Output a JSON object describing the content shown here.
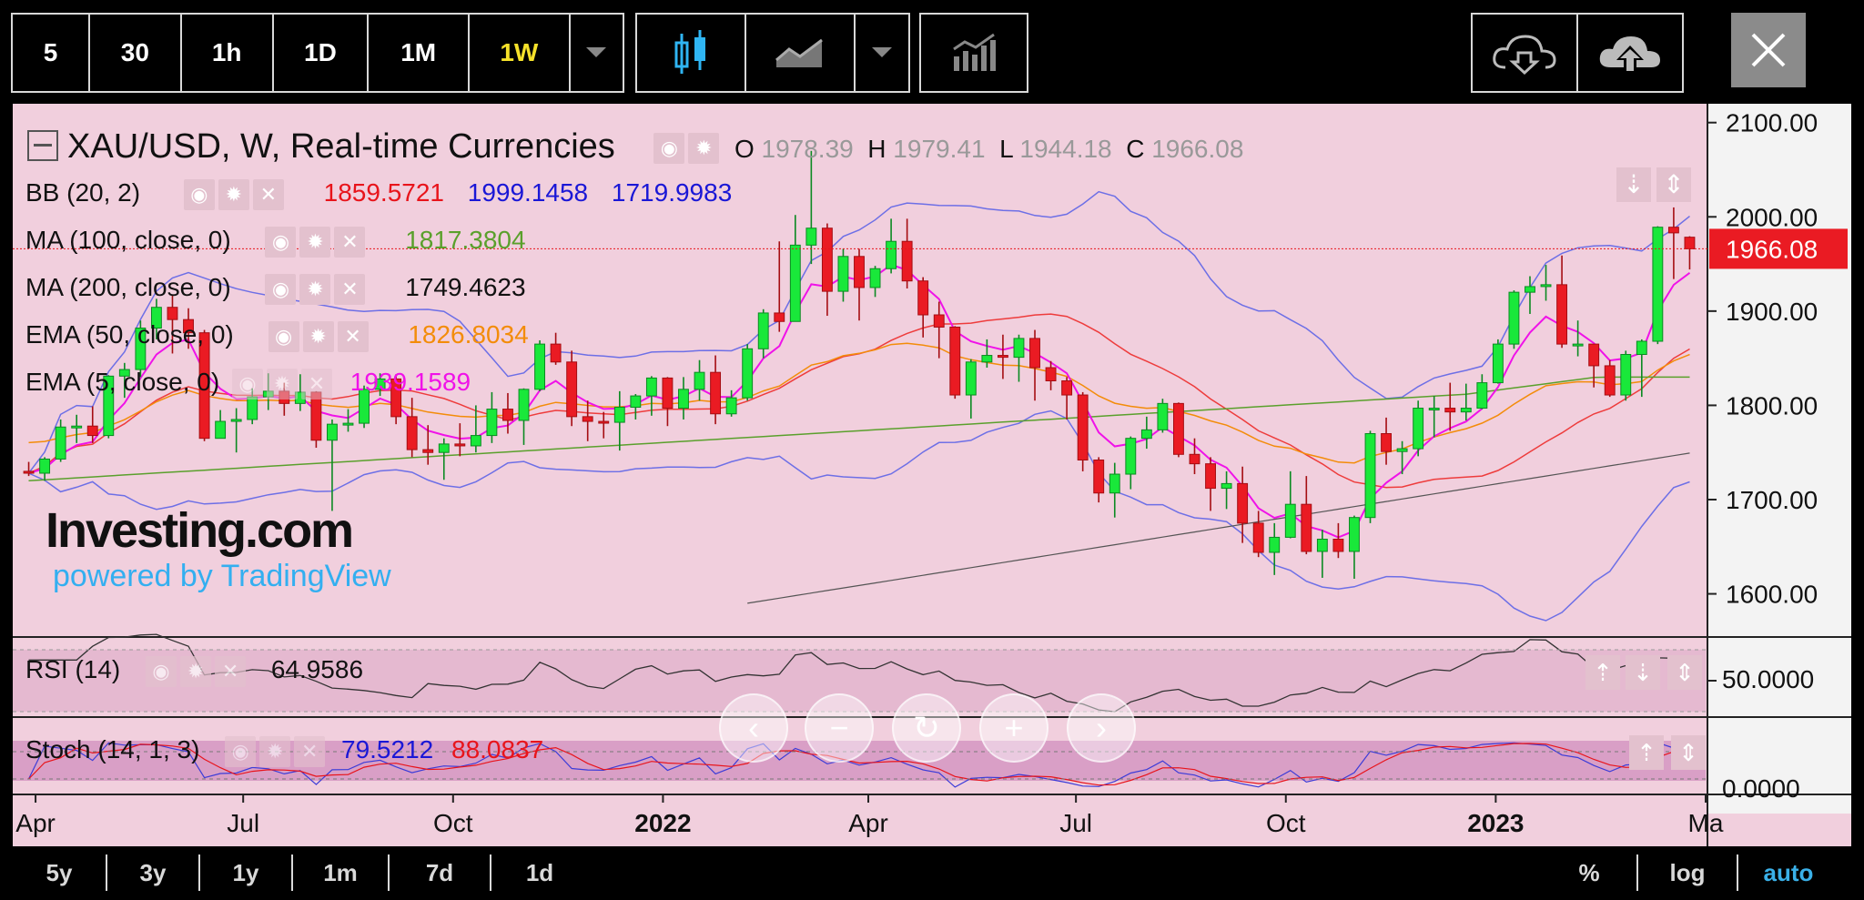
{
  "toolbar": {
    "intervals": [
      "5",
      "30",
      "1h",
      "1D",
      "1M",
      "1W"
    ],
    "active_interval": "1W"
  },
  "legend": {
    "symbol": "XAU/USD, W, Real-time Currencies",
    "ohlc": {
      "o_label": "O",
      "o": "1978.39",
      "h_label": "H",
      "h": "1979.41",
      "l_label": "L",
      "l": "1944.18",
      "c_label": "C",
      "c": "1966.08"
    },
    "indicators": [
      {
        "name": "BB (20, 2)",
        "values": [
          "1859.5721",
          "1999.1458",
          "1719.9983"
        ],
        "colors": [
          "#e8141b",
          "#1a17d6",
          "#1a17d6"
        ]
      },
      {
        "name": "MA (100, close, 0)",
        "values": [
          "1817.3804"
        ],
        "colors": [
          "#5aa02c"
        ]
      },
      {
        "name": "MA (200, close, 0)",
        "values": [
          "1749.4623"
        ],
        "colors": [
          "#111111"
        ]
      },
      {
        "name": "EMA (50, close, 0)",
        "values": [
          "1826.8034"
        ],
        "colors": [
          "#f38c09"
        ]
      },
      {
        "name": "EMA (5, close, 0)",
        "values": [
          "1939.1589"
        ],
        "colors": [
          "#f012e8"
        ]
      }
    ],
    "rsi": {
      "name": "RSI (14)",
      "value": "64.9586"
    },
    "stoch": {
      "name": "Stoch (14, 1, 3)",
      "k": "79.5212",
      "d": "88.0837"
    }
  },
  "brand": {
    "logo": "Investing.com",
    "powered": "powered by TradingView"
  },
  "price_axis": {
    "ticks": [
      "2100.00",
      "2000.00",
      "1900.00",
      "1800.00",
      "1700.00",
      "1600.00"
    ],
    "current": "1966.08"
  },
  "rsi_axis": {
    "tick": "50.0000"
  },
  "stoch_axis": {
    "tick": "0.0000"
  },
  "time_axis": [
    "Apr",
    "Jul",
    "Oct",
    "2022",
    "Apr",
    "Jul",
    "Oct",
    "2023",
    "Ma"
  ],
  "ranges": [
    "5y",
    "3y",
    "1y",
    "1m",
    "7d",
    "1d"
  ],
  "options": {
    "percent": "%",
    "log": "log",
    "auto": "auto"
  },
  "colors": {
    "up": "#19e83a",
    "down": "#ea1b23",
    "background": "#f1cfdd",
    "accent_auto": "#3ab0e8",
    "price_label": "#ea1b23"
  },
  "chart_data": {
    "type": "candlestick",
    "title": "XAU/USD, W, Real-time Currencies",
    "interval": "1W",
    "ylim": [
      1560,
      2120
    ],
    "x_range": [
      "2021-03-22",
      "2023-04-03"
    ],
    "series": [
      {
        "name": "XAU/USD",
        "points": [
          [
            "2021-03-29",
            1730,
            1740,
            1725,
            1728
          ],
          [
            "2021-04-05",
            1728,
            1745,
            1720,
            1743
          ],
          [
            "2021-04-12",
            1743,
            1785,
            1740,
            1777
          ],
          [
            "2021-04-19",
            1777,
            1790,
            1760,
            1778
          ],
          [
            "2021-04-26",
            1778,
            1799,
            1760,
            1768
          ],
          [
            "2021-05-03",
            1768,
            1832,
            1765,
            1831
          ],
          [
            "2021-05-10",
            1831,
            1845,
            1808,
            1838
          ],
          [
            "2021-05-17",
            1838,
            1890,
            1830,
            1882
          ],
          [
            "2021-05-24",
            1882,
            1913,
            1870,
            1904
          ],
          [
            "2021-05-31",
            1904,
            1917,
            1855,
            1891
          ],
          [
            "2021-06-07",
            1891,
            1903,
            1860,
            1877
          ],
          [
            "2021-06-14",
            1877,
            1880,
            1762,
            1765
          ],
          [
            "2021-06-21",
            1765,
            1795,
            1770,
            1783
          ],
          [
            "2021-06-28",
            1783,
            1797,
            1750,
            1785
          ],
          [
            "2021-07-05",
            1785,
            1818,
            1780,
            1809
          ],
          [
            "2021-07-12",
            1809,
            1834,
            1795,
            1815
          ],
          [
            "2021-07-19",
            1815,
            1824,
            1789,
            1802
          ],
          [
            "2021-07-26",
            1802,
            1833,
            1794,
            1814
          ],
          [
            "2021-08-02",
            1814,
            1815,
            1755,
            1763
          ],
          [
            "2021-08-09",
            1763,
            1785,
            1688,
            1780
          ],
          [
            "2021-08-16",
            1780,
            1796,
            1772,
            1781
          ],
          [
            "2021-08-23",
            1781,
            1821,
            1776,
            1817
          ],
          [
            "2021-08-30",
            1817,
            1834,
            1810,
            1828
          ],
          [
            "2021-09-06",
            1828,
            1833,
            1780,
            1788
          ],
          [
            "2021-09-13",
            1788,
            1808,
            1745,
            1753
          ],
          [
            "2021-09-20",
            1753,
            1779,
            1737,
            1750
          ],
          [
            "2021-09-27",
            1750,
            1765,
            1721,
            1759
          ],
          [
            "2021-10-04",
            1759,
            1781,
            1746,
            1757
          ],
          [
            "2021-10-11",
            1757,
            1800,
            1750,
            1768
          ],
          [
            "2021-10-18",
            1768,
            1814,
            1760,
            1796
          ],
          [
            "2021-10-25",
            1796,
            1813,
            1770,
            1784
          ],
          [
            "2021-11-01",
            1784,
            1818,
            1758,
            1817
          ],
          [
            "2021-11-08",
            1817,
            1869,
            1815,
            1865
          ],
          [
            "2021-11-15",
            1865,
            1877,
            1843,
            1846
          ],
          [
            "2021-11-22",
            1846,
            1858,
            1778,
            1788
          ],
          [
            "2021-11-29",
            1788,
            1805,
            1762,
            1783
          ],
          [
            "2021-12-06",
            1783,
            1793,
            1765,
            1782
          ],
          [
            "2021-12-13",
            1782,
            1815,
            1752,
            1798
          ],
          [
            "2021-12-20",
            1798,
            1812,
            1785,
            1810
          ],
          [
            "2021-12-27",
            1810,
            1831,
            1789,
            1829
          ],
          [
            "2022-01-03",
            1829,
            1830,
            1778,
            1797
          ],
          [
            "2022-01-10",
            1797,
            1830,
            1785,
            1817
          ],
          [
            "2022-01-17",
            1817,
            1848,
            1805,
            1835
          ],
          [
            "2022-01-24",
            1835,
            1853,
            1780,
            1791
          ],
          [
            "2022-01-31",
            1791,
            1816,
            1788,
            1808
          ],
          [
            "2022-02-07",
            1808,
            1865,
            1805,
            1860
          ],
          [
            "2022-02-14",
            1860,
            1902,
            1850,
            1898
          ],
          [
            "2022-02-21",
            1898,
            1974,
            1878,
            1889
          ],
          [
            "2022-02-28",
            1889,
            2002,
            1889,
            1970
          ],
          [
            "2022-03-07",
            1970,
            2070,
            1950,
            1988
          ],
          [
            "2022-03-14",
            1988,
            1993,
            1895,
            1921
          ],
          [
            "2022-03-21",
            1921,
            1966,
            1910,
            1958
          ],
          [
            "2022-03-28",
            1958,
            1966,
            1890,
            1925
          ],
          [
            "2022-04-04",
            1925,
            1948,
            1915,
            1945
          ],
          [
            "2022-04-11",
            1945,
            1998,
            1940,
            1974
          ],
          [
            "2022-04-18",
            1974,
            1998,
            1924,
            1932
          ],
          [
            "2022-04-25",
            1932,
            1936,
            1872,
            1896
          ],
          [
            "2022-05-02",
            1896,
            1910,
            1850,
            1883
          ],
          [
            "2022-05-09",
            1883,
            1884,
            1807,
            1811
          ],
          [
            "2022-05-16",
            1811,
            1849,
            1786,
            1846
          ],
          [
            "2022-05-23",
            1846,
            1870,
            1840,
            1853
          ],
          [
            "2022-05-30",
            1853,
            1875,
            1828,
            1851
          ],
          [
            "2022-06-06",
            1851,
            1875,
            1825,
            1871
          ],
          [
            "2022-06-13",
            1871,
            1880,
            1805,
            1840
          ],
          [
            "2022-06-20",
            1840,
            1847,
            1816,
            1826
          ],
          [
            "2022-06-27",
            1826,
            1830,
            1785,
            1811
          ],
          [
            "2022-07-04",
            1811,
            1814,
            1730,
            1742
          ],
          [
            "2022-07-11",
            1742,
            1745,
            1697,
            1707
          ],
          [
            "2022-07-18",
            1707,
            1739,
            1681,
            1727
          ],
          [
            "2022-07-25",
            1727,
            1767,
            1711,
            1765
          ],
          [
            "2022-08-01",
            1765,
            1788,
            1754,
            1774
          ],
          [
            "2022-08-08",
            1774,
            1807,
            1771,
            1802
          ],
          [
            "2022-08-15",
            1802,
            1803,
            1745,
            1748
          ],
          [
            "2022-08-22",
            1748,
            1765,
            1727,
            1738
          ],
          [
            "2022-08-29",
            1738,
            1745,
            1688,
            1712
          ],
          [
            "2022-09-05",
            1712,
            1730,
            1690,
            1717
          ],
          [
            "2022-09-12",
            1717,
            1735,
            1654,
            1675
          ],
          [
            "2022-09-19",
            1675,
            1688,
            1639,
            1644
          ],
          [
            "2022-09-26",
            1644,
            1675,
            1620,
            1660
          ],
          [
            "2022-10-03",
            1660,
            1730,
            1659,
            1695
          ],
          [
            "2022-10-10",
            1695,
            1725,
            1642,
            1645
          ],
          [
            "2022-10-17",
            1645,
            1668,
            1617,
            1658
          ],
          [
            "2022-10-24",
            1658,
            1675,
            1638,
            1645
          ],
          [
            "2022-10-31",
            1645,
            1683,
            1616,
            1681
          ],
          [
            "2022-11-07",
            1681,
            1773,
            1675,
            1770
          ],
          [
            "2022-11-14",
            1770,
            1787,
            1737,
            1751
          ],
          [
            "2022-11-21",
            1751,
            1762,
            1727,
            1754
          ],
          [
            "2022-11-28",
            1754,
            1805,
            1746,
            1797
          ],
          [
            "2022-12-05",
            1797,
            1810,
            1766,
            1797
          ],
          [
            "2022-12-12",
            1797,
            1824,
            1773,
            1793
          ],
          [
            "2022-12-19",
            1793,
            1823,
            1784,
            1797
          ],
          [
            "2022-12-26",
            1797,
            1833,
            1796,
            1824
          ],
          [
            "2023-01-02",
            1824,
            1870,
            1823,
            1865
          ],
          [
            "2023-01-09",
            1865,
            1922,
            1860,
            1920
          ],
          [
            "2023-01-16",
            1920,
            1937,
            1897,
            1926
          ],
          [
            "2023-01-23",
            1926,
            1949,
            1911,
            1928
          ],
          [
            "2023-01-30",
            1928,
            1959,
            1861,
            1865
          ],
          [
            "2023-02-06",
            1865,
            1890,
            1852,
            1865
          ],
          [
            "2023-02-13",
            1865,
            1862,
            1819,
            1842
          ],
          [
            "2023-02-20",
            1842,
            1848,
            1809,
            1811
          ],
          [
            "2023-02-27",
            1811,
            1858,
            1805,
            1854
          ],
          [
            "2023-03-06",
            1854,
            1870,
            1809,
            1868
          ],
          [
            "2023-03-13",
            1868,
            1990,
            1865,
            1989
          ],
          [
            "2023-03-20",
            1989,
            2010,
            1934,
            1983
          ],
          [
            "2023-03-27",
            1978.39,
            1979.41,
            1944.18,
            1966.08
          ]
        ]
      }
    ],
    "indicators": [
      {
        "name": "BB (20, 2)",
        "values": [
          1859.5721,
          1999.1458,
          1719.9983
        ]
      },
      {
        "name": "MA (100, close, 0)",
        "value": 1817.3804
      },
      {
        "name": "MA (200, close, 0)",
        "value": 1749.4623
      },
      {
        "name": "EMA (50, close, 0)",
        "value": 1826.8034
      },
      {
        "name": "EMA (5, close, 0)",
        "value": 1939.1589
      },
      {
        "name": "RSI (14)",
        "value": 64.9586
      },
      {
        "name": "Stoch (14, 1, 3)",
        "values": [
          79.5212,
          88.0837
        ]
      }
    ]
  }
}
